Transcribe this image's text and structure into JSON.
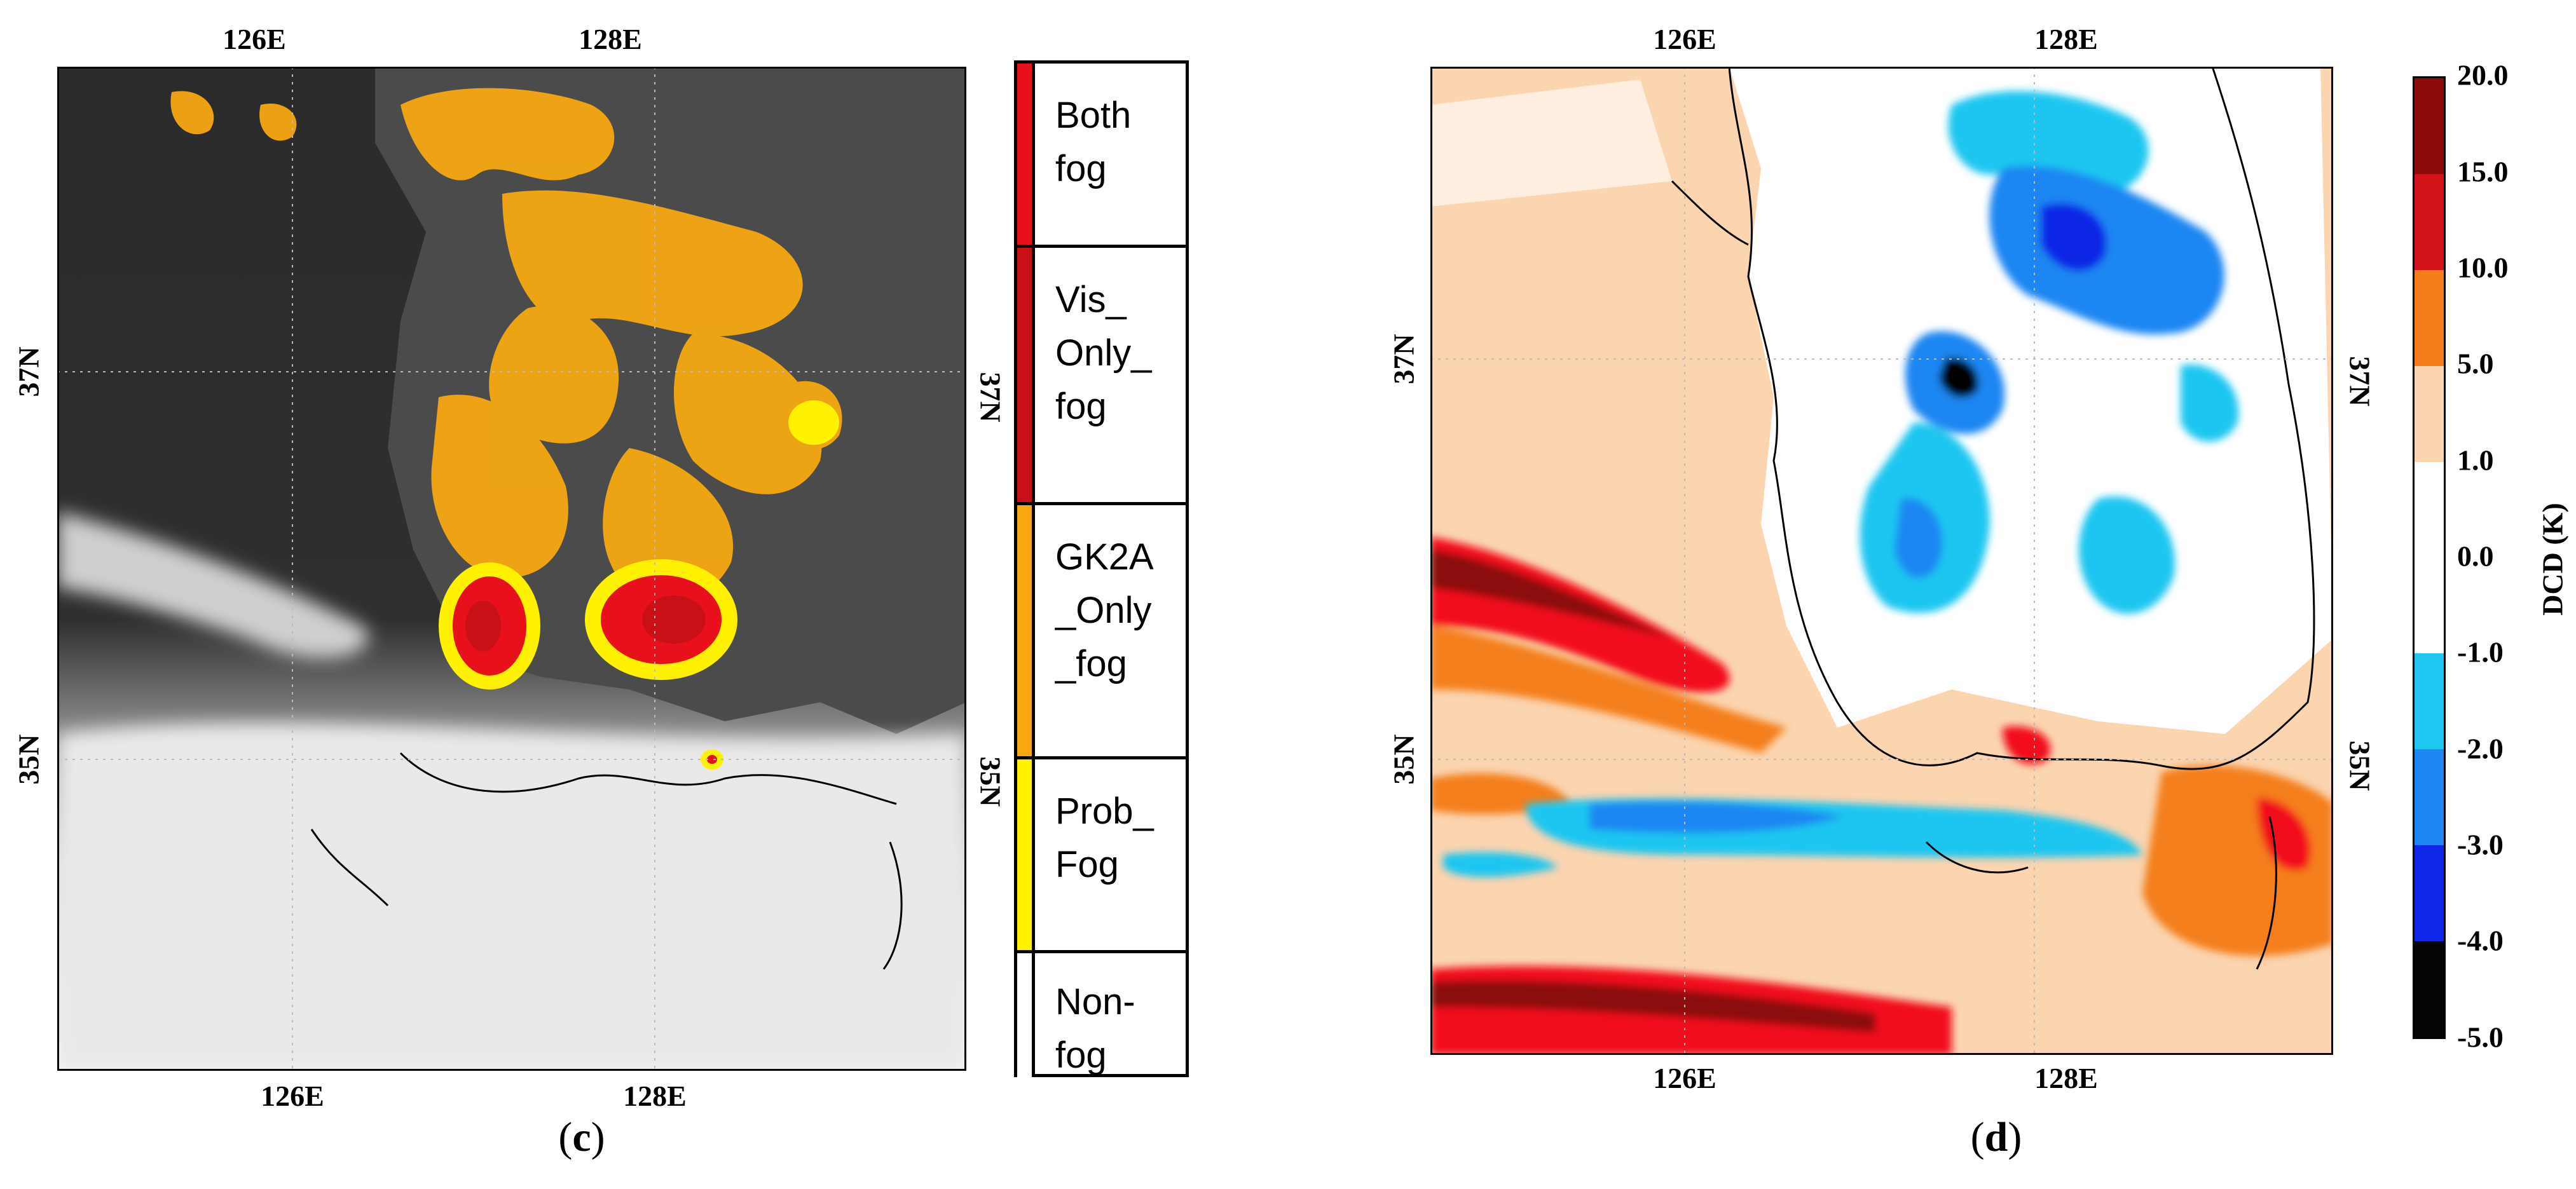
{
  "panel_c": {
    "caption_open": "(",
    "caption_letter": "c",
    "caption_close": ")",
    "lon_top": [
      "126E",
      "128E"
    ],
    "lon_bottom": [
      "126E",
      "128E"
    ],
    "lat_left": [
      "37N",
      "35N"
    ],
    "lat_right": [
      "37N",
      "35N"
    ],
    "legend": [
      {
        "label": "Both\nfog",
        "color": "#e8101a"
      },
      {
        "label": "Vis_\nOnly_\nfog",
        "color": "#c81016"
      },
      {
        "label": "GK2A\n_Only\n_fog",
        "color": "#f5a812"
      },
      {
        "label": "Prob_\nFog",
        "color": "#fff200"
      },
      {
        "label": "Non-\nfog",
        "color": "#ffffff"
      }
    ]
  },
  "panel_d": {
    "caption_open": "(",
    "caption_letter": "d",
    "caption_close": ")",
    "lon_top": [
      "126E",
      "128E"
    ],
    "lon_bottom": [
      "126E",
      "128E"
    ],
    "lat_left": [
      "37N",
      "35N"
    ],
    "lat_right": [
      "37N",
      "35N"
    ],
    "colorbar_title": "DCD (K)",
    "colorbar_ticks": [
      "20.0",
      "15.0",
      "10.0",
      "5.0",
      "1.0",
      "0.0",
      "-1.0",
      "-2.0",
      "-3.0",
      "-4.0",
      "-5.0"
    ],
    "colorbar_colors": [
      "#8b0a0a",
      "#d2141a",
      "#f20d1a",
      "#f47f1a",
      "#fbd4b0",
      "#ffffff",
      "#ffffff",
      "#1fc6f0",
      "#1f86f2",
      "#1026e6",
      "#050505"
    ]
  }
}
